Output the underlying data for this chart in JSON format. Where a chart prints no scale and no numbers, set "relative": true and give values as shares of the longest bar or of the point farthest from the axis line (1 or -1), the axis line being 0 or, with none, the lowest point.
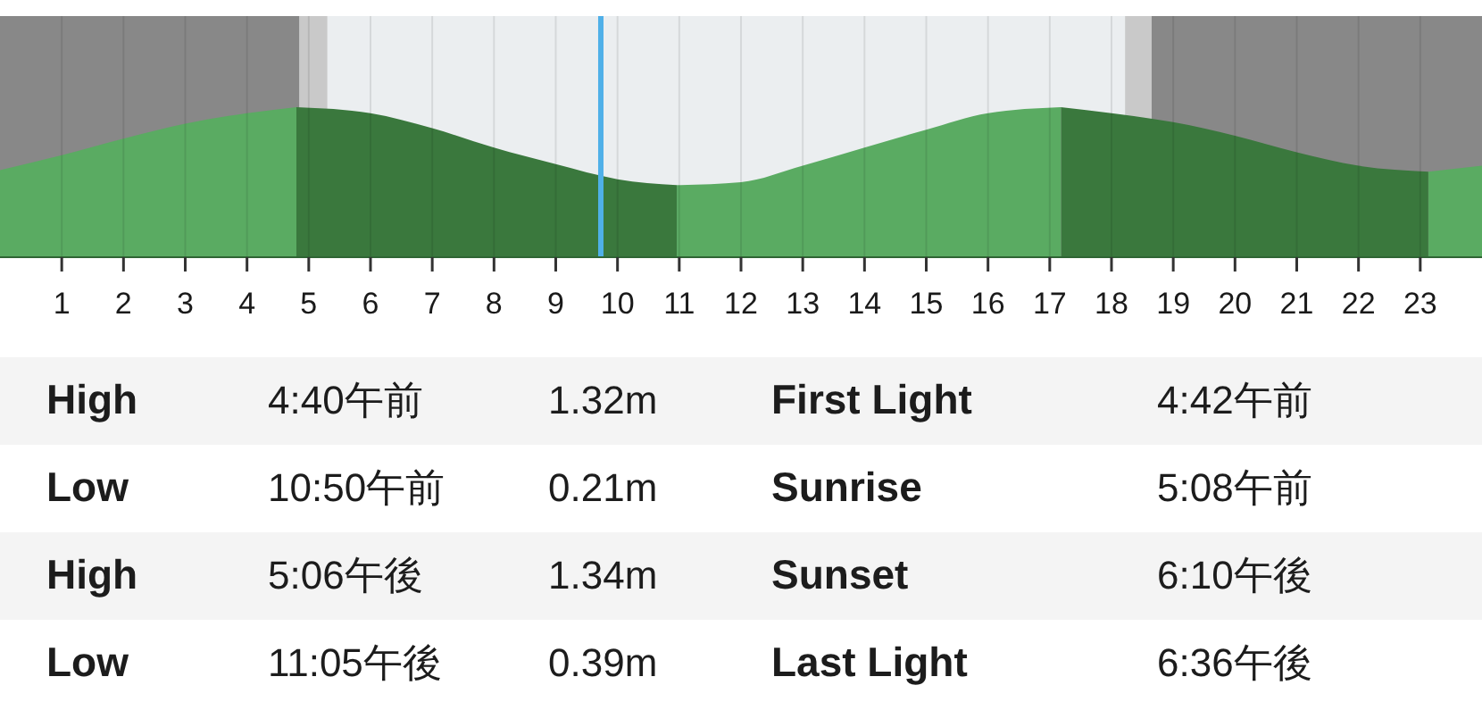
{
  "chart_data": [
    {
      "type": "area",
      "relative": true,
      "x": [
        0,
        1,
        2,
        3,
        4,
        4.8,
        6,
        7,
        8,
        9,
        10,
        10.96,
        12,
        13,
        14,
        15,
        16,
        17.18,
        18,
        19,
        20,
        21,
        22,
        23.13,
        24
      ],
      "xlim": [
        0,
        24
      ],
      "xticks": [
        1,
        2,
        3,
        4,
        5,
        6,
        7,
        8,
        9,
        10,
        11,
        12,
        13,
        14,
        15,
        16,
        17,
        18,
        19,
        20,
        21,
        22,
        23
      ],
      "grid": "x",
      "series": [
        {
          "color": "#5aab62",
          "values": [
            0.58,
            0.68,
            0.79,
            0.89,
            0.96,
            1.0,
            null,
            null,
            null,
            null,
            null,
            0.48,
            0.5,
            0.61,
            0.73,
            0.85,
            0.96,
            1.0,
            null,
            null,
            null,
            null,
            null,
            0.57,
            0.61
          ]
        },
        {
          "color": "#3a783d",
          "values": [
            null,
            null,
            null,
            null,
            null,
            1.0,
            0.96,
            0.86,
            0.73,
            0.62,
            0.52,
            0.48,
            null,
            null,
            null,
            null,
            null,
            1.0,
            0.96,
            0.9,
            0.81,
            0.7,
            0.61,
            0.57,
            null
          ]
        }
      ],
      "bands": [
        {
          "axis": "x",
          "from": 0,
          "to": 4.85,
          "color": "#888888"
        },
        {
          "axis": "x",
          "from": 4.85,
          "to": 5.3,
          "color": "#c9c9c9"
        },
        {
          "axis": "x",
          "from": 18.22,
          "to": 18.65,
          "color": "#c9c9c9"
        },
        {
          "axis": "x",
          "from": 18.65,
          "to": 24,
          "color": "#888888"
        }
      ],
      "ref_lines": [
        {
          "axis": "x",
          "value": 9.73,
          "color": "#4fb0e8"
        }
      ]
    },
    {
      "type": "other",
      "annotations": [
        "High",
        "4:40午前",
        "1.32m",
        "First Light",
        "4:42午前",
        "Low",
        "10:50午前",
        "0.21m",
        "Sunrise",
        "5:08午前",
        "High",
        "5:06午後",
        "1.34m",
        "Sunset",
        "6:10午後",
        "Low",
        "11:05午後",
        "0.39m",
        "Last Light",
        "6:36午後"
      ]
    }
  ]
}
